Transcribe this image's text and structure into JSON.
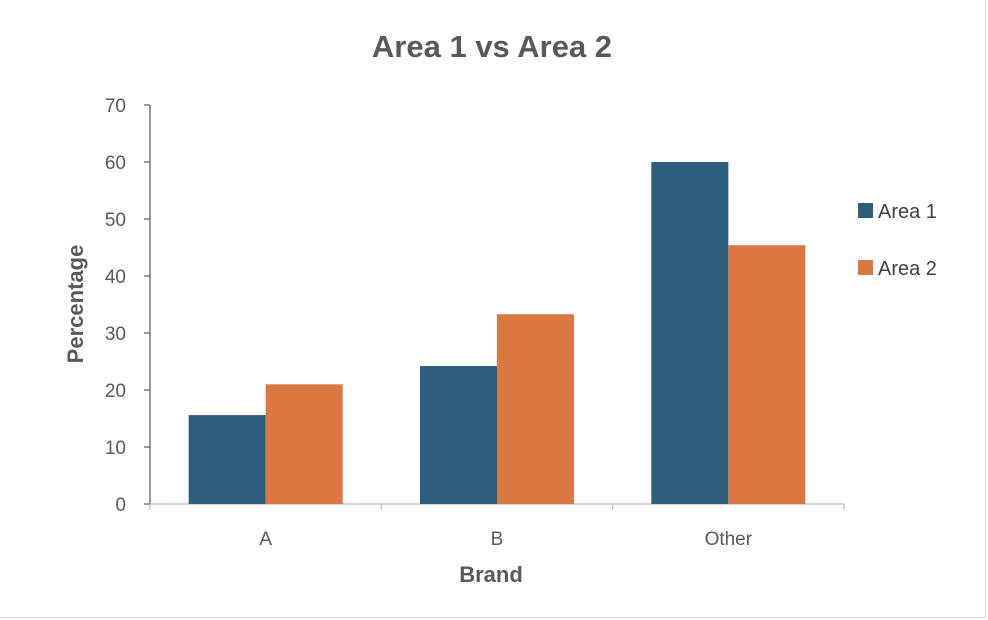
{
  "chart_data": {
    "type": "bar",
    "title": "Area 1 vs Area 2",
    "xlabel": "Brand",
    "ylabel": "Percentage",
    "categories": [
      "A",
      "B",
      "Other"
    ],
    "series": [
      {
        "name": "Area 1",
        "color": "#2e5e7e",
        "values": [
          15.6,
          24.2,
          60
        ]
      },
      {
        "name": "Area 2",
        "color": "#d97841",
        "values": [
          21,
          33.3,
          45.4
        ]
      }
    ],
    "ylim": [
      0,
      70
    ],
    "yticks": [
      "0",
      "10",
      "20",
      "30",
      "40",
      "50",
      "60",
      "70"
    ],
    "grid": false,
    "legend_position": "right"
  }
}
